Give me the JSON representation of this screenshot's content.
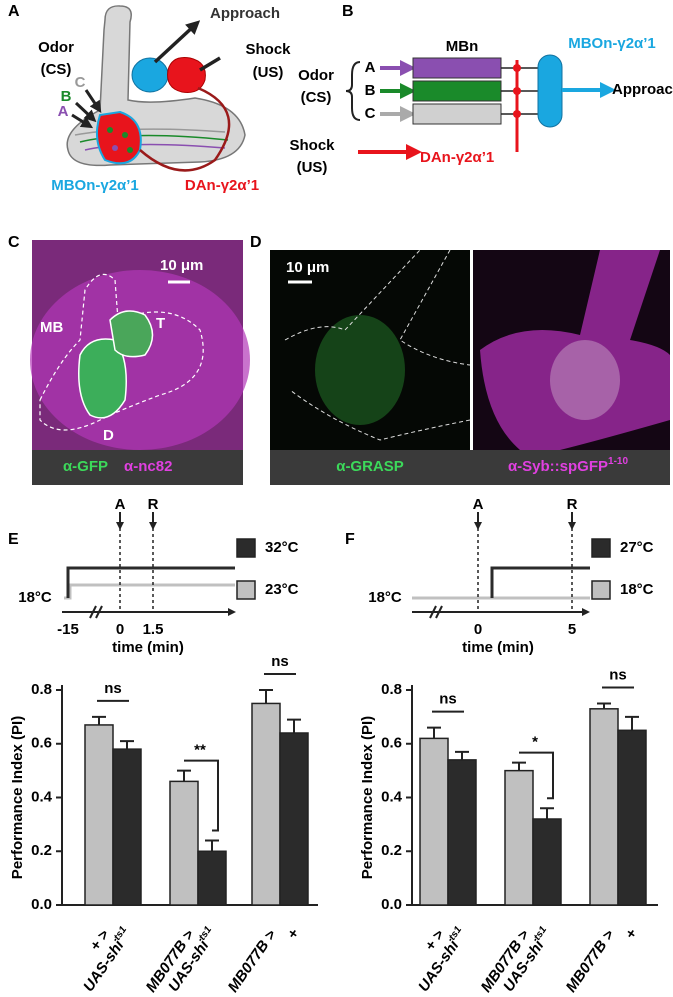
{
  "panel_labels": [
    "A",
    "B",
    "C",
    "D",
    "E",
    "F"
  ],
  "panel_a": {
    "approach": "Approach",
    "odor": "Odor",
    "cs": "(CS)",
    "shock": "Shock",
    "us": "(US)",
    "odor_a": "A",
    "odor_b": "B",
    "odor_c": "C",
    "mbon": "MBOn-γ2α’1",
    "dan": "DAn-γ2α’1"
  },
  "panel_b": {
    "mbn": "MBn",
    "mbon": "MBOn-γ2α’1",
    "odor": "Odor",
    "cs": "(CS)",
    "odor_a": "A",
    "odor_b": "B",
    "odor_c": "C",
    "approach": "Approach",
    "shock": "Shock",
    "us": "(US)",
    "dan": "DAn-γ2α’1"
  },
  "panel_c": {
    "scale": "10 μm",
    "mb": "MB",
    "t": "T",
    "d": "D",
    "stain1": "α-GFP",
    "stain2": "α-nc82"
  },
  "panel_d": {
    "scale": "10 μm",
    "stain1": "α-GRASP",
    "stain2": "α-Syb::spGFP",
    "stain2_sup": "1-10"
  },
  "chart_data": [
    {
      "type": "bar",
      "timeline": {
        "baseline": "18°C",
        "events": [
          "A",
          "R"
        ],
        "ticks": [
          "-15",
          "0",
          "1.5"
        ],
        "xlabel": "time (min)"
      },
      "ylabel": "Performance Index (PI)",
      "categories": [
        {
          "line1": "+ >",
          "line2": "UAS-shi",
          "sup": "ts1"
        },
        {
          "line1": "MB077B >",
          "line2": "UAS-shi",
          "sup": "ts1"
        },
        {
          "line1": "MB077B >",
          "line2": "+",
          "sup": null
        }
      ],
      "series": [
        {
          "name": "23°C",
          "color": "#c0c0c0",
          "values": [
            0.67,
            0.46,
            0.75
          ],
          "errors": [
            0.03,
            0.04,
            0.05
          ]
        },
        {
          "name": "32°C",
          "color": "#2b2b2b",
          "values": [
            0.58,
            0.2,
            0.64
          ],
          "errors": [
            0.03,
            0.04,
            0.05
          ]
        }
      ],
      "significance": [
        "ns",
        "**",
        "ns"
      ],
      "ylim": [
        0,
        0.8
      ],
      "yticks": [
        {
          "value": 0,
          "label": "0.0"
        },
        0.2,
        0.4,
        0.6,
        0.8
      ]
    },
    {
      "type": "bar",
      "timeline": {
        "baseline": "18°C",
        "events": [
          "A",
          "R"
        ],
        "ticks": [
          "0",
          "5"
        ],
        "xlabel": "time (min)"
      },
      "ylabel": "Performance Index (PI)",
      "categories": [
        {
          "line1": "+ >",
          "line2": "UAS-shi",
          "sup": "ts1"
        },
        {
          "line1": "MB077B >",
          "line2": "UAS-shi",
          "sup": "ts1"
        },
        {
          "line1": "MB077B >",
          "line2": "+",
          "sup": null
        }
      ],
      "series": [
        {
          "name": "18°C",
          "color": "#c0c0c0",
          "values": [
            0.62,
            0.5,
            0.73
          ],
          "errors": [
            0.04,
            0.03,
            0.02
          ]
        },
        {
          "name": "27°C",
          "color": "#2b2b2b",
          "values": [
            0.54,
            0.32,
            0.65
          ],
          "errors": [
            0.03,
            0.04,
            0.05
          ]
        }
      ],
      "significance": [
        "ns",
        "*",
        "ns"
      ],
      "ylim": [
        0,
        0.8
      ],
      "yticks": [
        {
          "value": 0,
          "label": "0.0"
        },
        0.2,
        0.4,
        0.6,
        0.8
      ]
    }
  ]
}
